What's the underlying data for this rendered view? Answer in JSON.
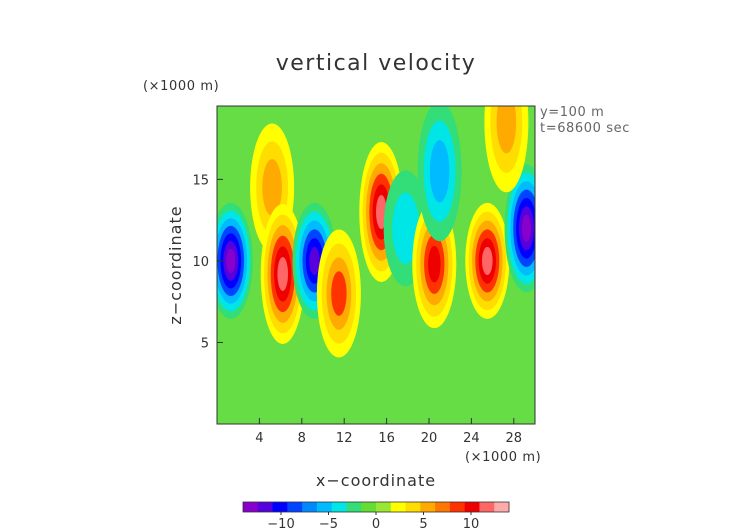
{
  "chart_data": {
    "type": "heatmap",
    "title": "vertical velocity",
    "xlabel": "x−coordinate",
    "ylabel": "z−coordinate",
    "x_unit": "(×1000 m)",
    "z_unit": "(×1000 m)",
    "annotations": [
      "y=100 m",
      "t=68600 sec"
    ],
    "xlim": [
      0,
      30
    ],
    "zlim": [
      0,
      19.5
    ],
    "x_ticks": [
      4,
      8,
      12,
      16,
      20,
      24,
      28
    ],
    "z_ticks": [
      5,
      10,
      15
    ],
    "colorbar": {
      "ticks": [
        -10,
        -5,
        0,
        5,
        10
      ],
      "range": [
        -14,
        14
      ],
      "colors": [
        "#8800cc",
        "#5500dd",
        "#0000ff",
        "#0044ff",
        "#0088ff",
        "#00bbff",
        "#00e6e6",
        "#33dd77",
        "#66dd33",
        "#99e633",
        "#ffff00",
        "#ffdd00",
        "#ffaa00",
        "#ff7700",
        "#ff3300",
        "#ee0000",
        "#ff6666",
        "#ffaaaa"
      ]
    },
    "features": [
      {
        "x": 1.3,
        "z": 10.0,
        "value": -13,
        "note": "downdraft core left edge"
      },
      {
        "x": 5.2,
        "z": 14.5,
        "value": 6,
        "note": "upper updraft plume"
      },
      {
        "x": 6.2,
        "z": 9.2,
        "value": 12,
        "note": "updraft core"
      },
      {
        "x": 9.2,
        "z": 10.0,
        "value": -12,
        "note": "downdraft column"
      },
      {
        "x": 11.5,
        "z": 8.0,
        "value": 8,
        "note": "updraft"
      },
      {
        "x": 15.5,
        "z": 13.0,
        "value": 11,
        "note": "updraft core"
      },
      {
        "x": 17.8,
        "z": 12.0,
        "value": -4,
        "note": "downdraft"
      },
      {
        "x": 20.5,
        "z": 9.8,
        "value": 10,
        "note": "updraft core"
      },
      {
        "x": 21.0,
        "z": 15.5,
        "value": -6,
        "note": "upper downdraft"
      },
      {
        "x": 25.5,
        "z": 10.0,
        "value": 12,
        "note": "updraft core"
      },
      {
        "x": 29.2,
        "z": 12.0,
        "value": -13,
        "note": "downdraft core right edge"
      },
      {
        "x": 27.3,
        "z": 18.5,
        "value": 5,
        "note": "small upper updraft"
      }
    ]
  }
}
